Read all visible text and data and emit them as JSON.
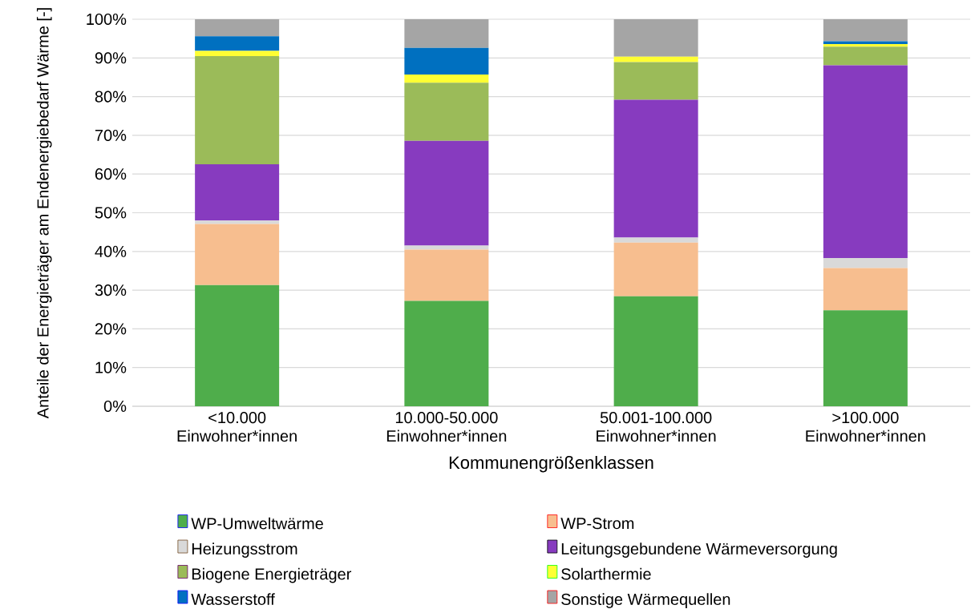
{
  "chart_data": {
    "type": "bar",
    "stacked": true,
    "xlabel": "Kommunengrößenklassen",
    "ylabel": "Anteile der Energieträger am Endenergiebedarf Wärme [-]",
    "categories": [
      "<10.000 Einwohner*innen",
      "10.000-50.000 Einwohner*innen",
      "50.001-100.000 Einwohner*innen",
      ">100.000 Einwohner*innen"
    ],
    "series": [
      {
        "name": "WP-Umweltwärme",
        "color": "#4fad4b",
        "values": [
          31.3,
          27.2,
          28.4,
          24.8
        ]
      },
      {
        "name": "WP-Strom",
        "color": "#f7be8f",
        "values": [
          15.8,
          13.3,
          13.9,
          10.9
        ]
      },
      {
        "name": "Heizungsstrom",
        "color": "#d9d9d9",
        "values": [
          0.9,
          1.0,
          1.3,
          2.6
        ]
      },
      {
        "name": "Leitungsgebundene Wärmeversorgung",
        "color": "#873bbf",
        "values": [
          14.5,
          27.1,
          35.6,
          49.8
        ]
      },
      {
        "name": "Biogene Energieträger",
        "color": "#9bbb59",
        "values": [
          28.0,
          15.0,
          9.7,
          4.8
        ]
      },
      {
        "name": "Solarthermie",
        "color": "#ffff33",
        "values": [
          1.3,
          2.1,
          1.4,
          0.7
        ]
      },
      {
        "name": "Wasserstoff",
        "color": "#0070c0",
        "values": [
          3.8,
          6.9,
          0,
          0.7
        ]
      },
      {
        "name": "Sonstige Wärmequellen",
        "color": "#a5a5a5",
        "values": [
          4.4,
          7.4,
          9.7,
          5.7
        ]
      }
    ],
    "ylim": [
      0,
      100
    ],
    "yticks": [
      {
        "value": 0,
        "label": "0%"
      },
      {
        "value": 10,
        "label": "10%"
      },
      {
        "value": 20,
        "label": "20%"
      },
      {
        "value": 30,
        "label": "30%"
      },
      {
        "value": 40,
        "label": "40%"
      },
      {
        "value": 50,
        "label": "50%"
      },
      {
        "value": 60,
        "label": "60%"
      },
      {
        "value": 70,
        "label": "70%"
      },
      {
        "value": 80,
        "label": "80%"
      },
      {
        "value": 90,
        "label": "90%"
      },
      {
        "value": 100,
        "label": "100%"
      }
    ],
    "grid": "y",
    "legend": "bottom"
  }
}
